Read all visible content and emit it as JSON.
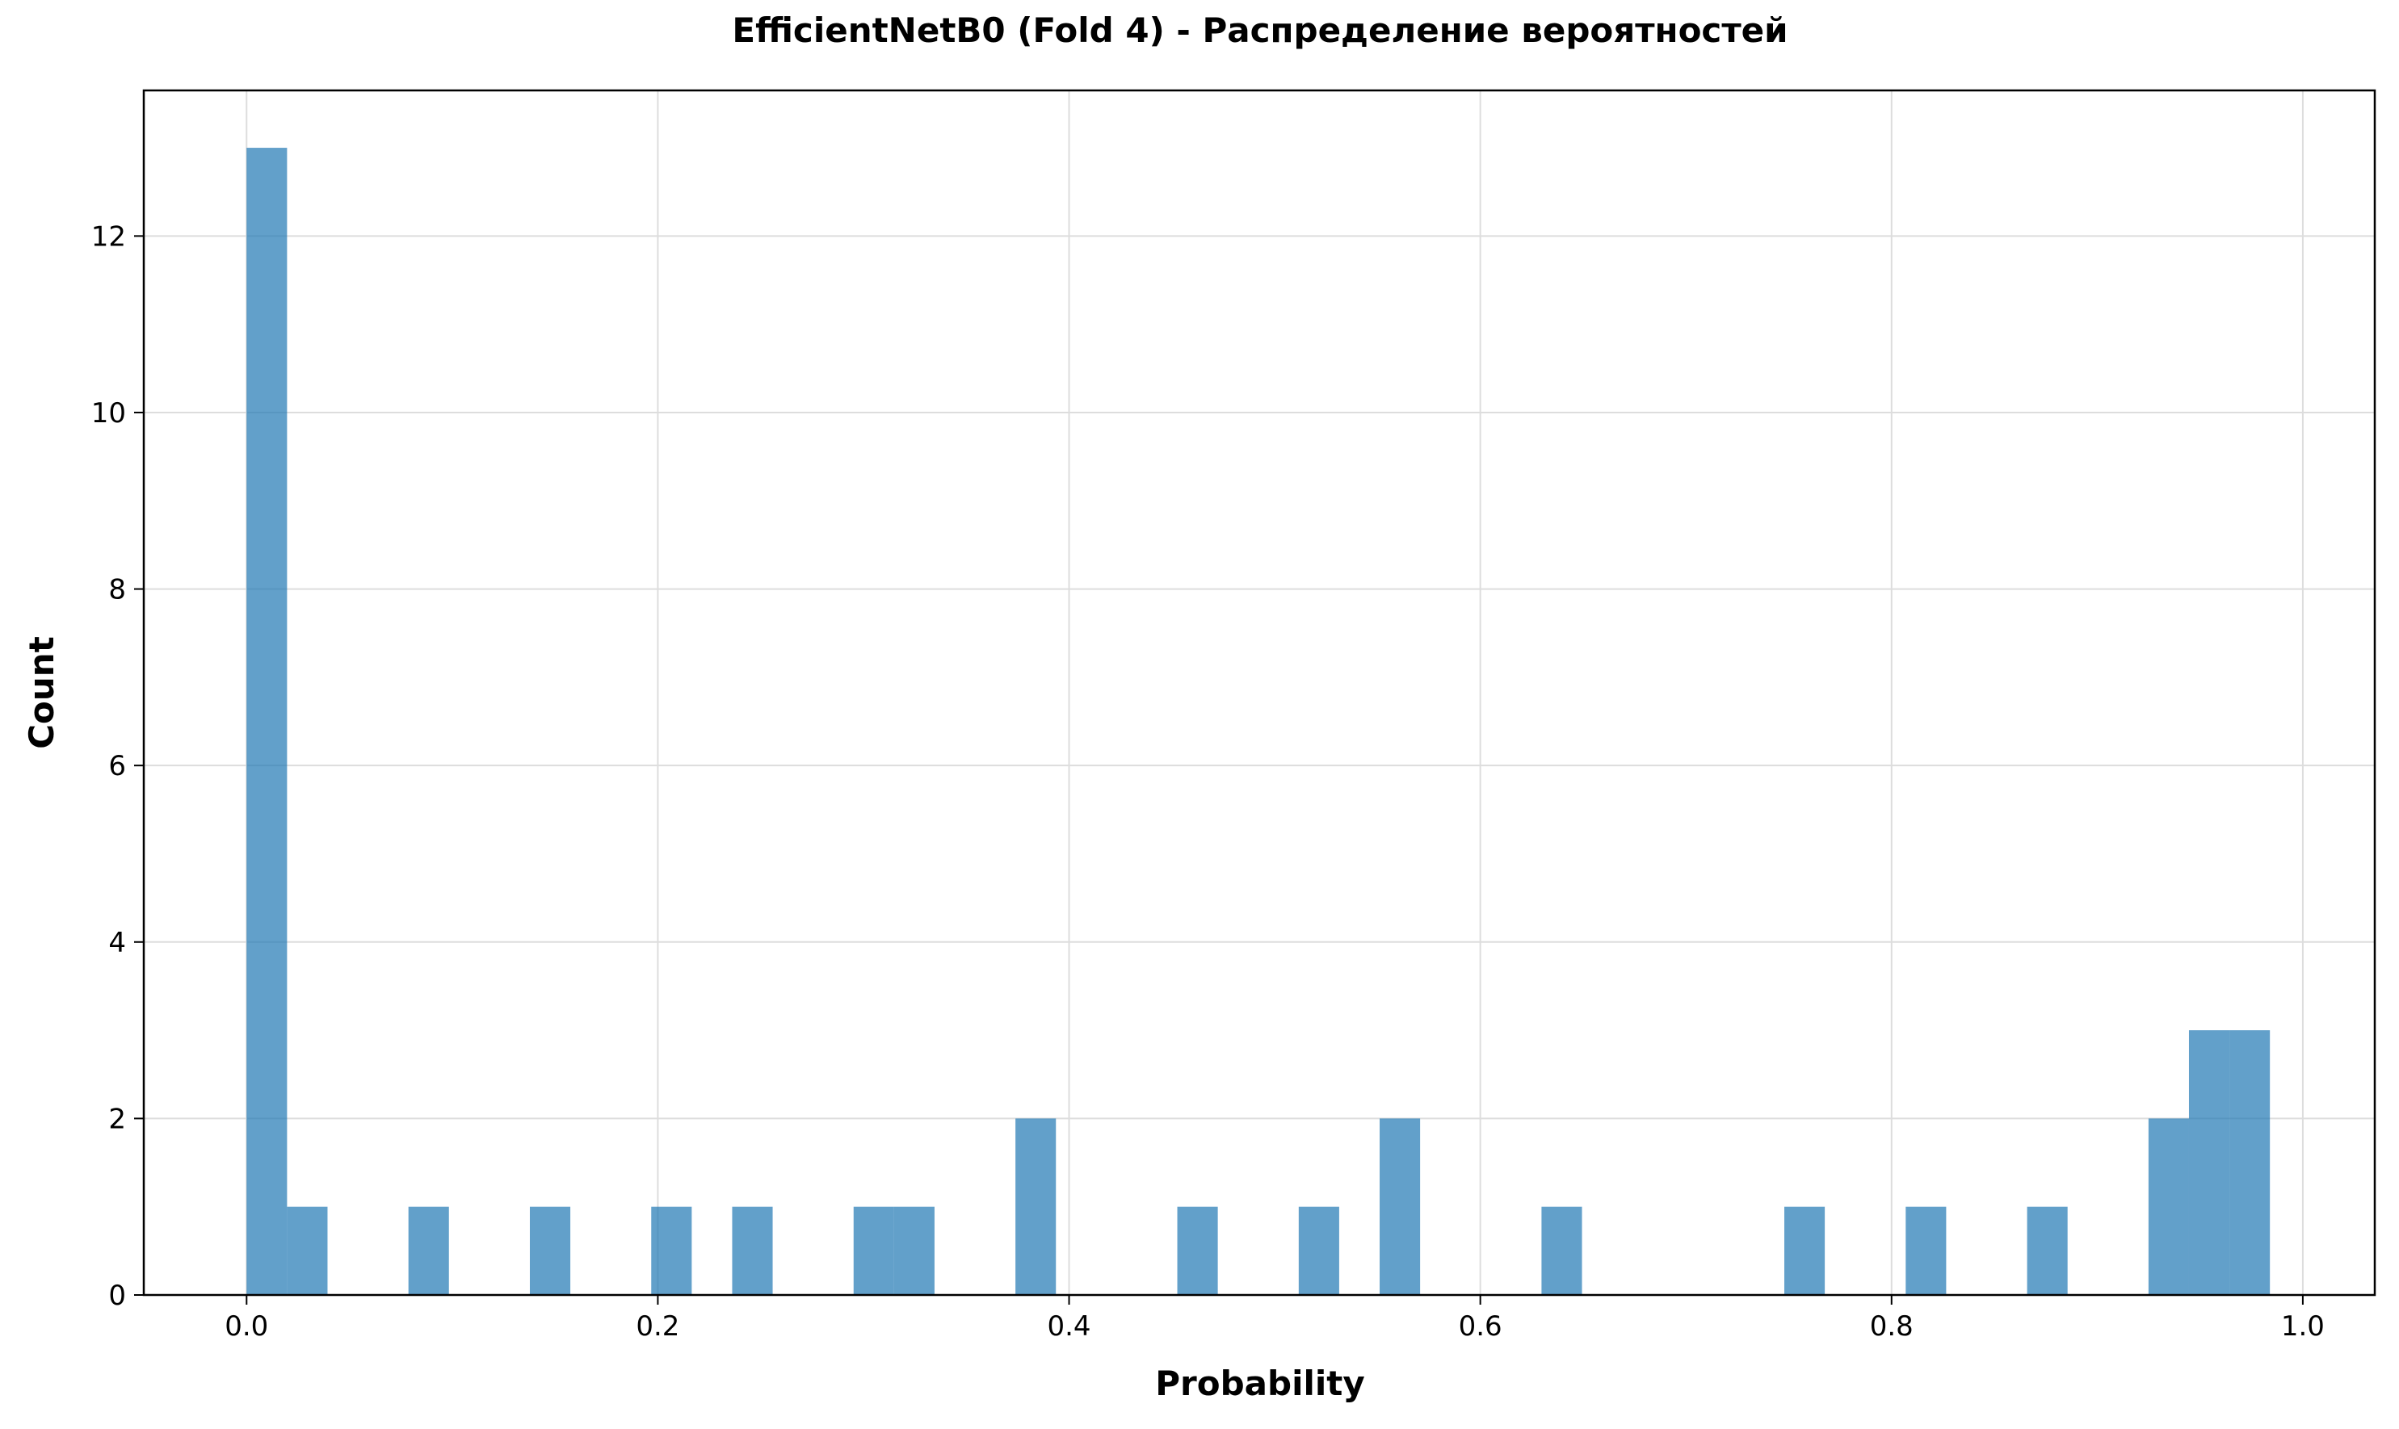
{
  "chart_data": {
    "type": "bar",
    "title": "EfficientNetB0 (Fold 4) - Распределение вероятностей",
    "xlabel": "Probability",
    "ylabel": "Count",
    "xlim": [
      -0.05,
      1.035
    ],
    "ylim": [
      0,
      13.65
    ],
    "grid": true,
    "color": "#1f77b4",
    "xticks": [
      0.0,
      0.2,
      0.4,
      0.6,
      0.8,
      1.0
    ],
    "xtick_labels": [
      "0.0",
      "0.2",
      "0.4",
      "0.6",
      "0.8",
      "1.0"
    ],
    "yticks": [
      0,
      2,
      4,
      6,
      8,
      10,
      12
    ],
    "ytick_labels": [
      "0",
      "2",
      "4",
      "6",
      "8",
      "10",
      "12"
    ],
    "bin_start": 0.0,
    "bin_width": 0.01968,
    "bins": [
      {
        "x": 0.00984,
        "count": 13
      },
      {
        "x": 0.02952,
        "count": 1
      },
      {
        "x": 0.08856,
        "count": 1
      },
      {
        "x": 0.1476,
        "count": 1
      },
      {
        "x": 0.20664,
        "count": 1
      },
      {
        "x": 0.246,
        "count": 1
      },
      {
        "x": 0.30504,
        "count": 1
      },
      {
        "x": 0.32472,
        "count": 1
      },
      {
        "x": 0.38376,
        "count": 2
      },
      {
        "x": 0.46248,
        "count": 1
      },
      {
        "x": 0.52152,
        "count": 1
      },
      {
        "x": 0.56088,
        "count": 2
      },
      {
        "x": 0.6396,
        "count": 1
      },
      {
        "x": 0.75768,
        "count": 1
      },
      {
        "x": 0.81672,
        "count": 1
      },
      {
        "x": 0.87576,
        "count": 1
      },
      {
        "x": 0.9348,
        "count": 2
      },
      {
        "x": 0.95448,
        "count": 3
      },
      {
        "x": 0.97416,
        "count": 3
      }
    ]
  }
}
